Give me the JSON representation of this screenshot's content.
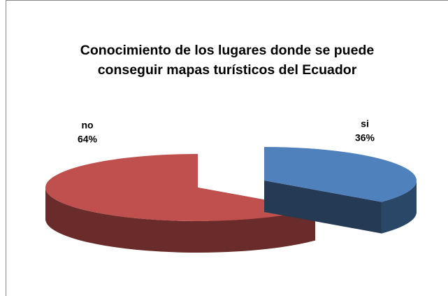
{
  "chart_data": {
    "type": "pie3d",
    "title": "Conocimiento de los lugares donde se puede conseguir mapas turísticos del Ecuador",
    "categories": [
      "si",
      "no"
    ],
    "values": [
      36,
      64
    ],
    "value_labels": [
      "36%",
      "64%"
    ],
    "colors": [
      "#4f81bd",
      "#c0504d"
    ]
  }
}
